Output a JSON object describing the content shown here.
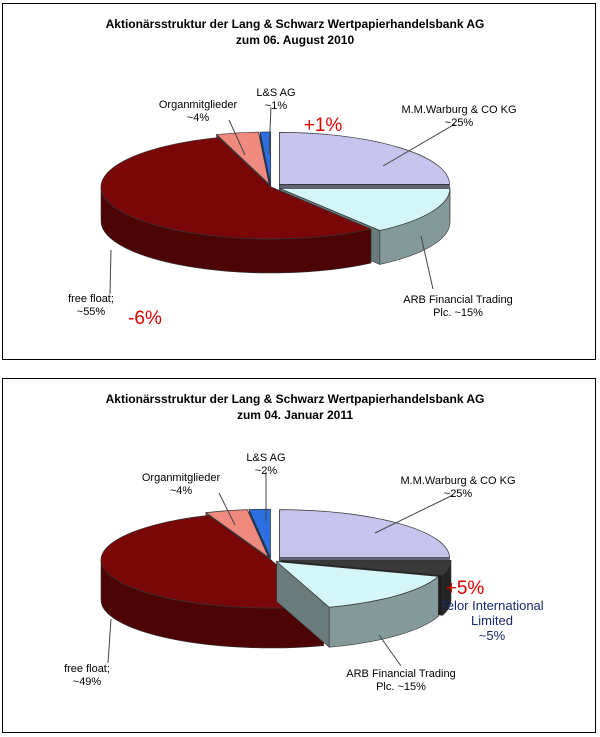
{
  "chart_data": [
    {
      "type": "pie",
      "title": "Aktionärsstruktur der Lang & Schwarz Wertpapierhandelsbank  AG",
      "subtitle": "zum 06. August  2010",
      "slices": [
        {
          "key": "warburg",
          "label_lines": [
            "M.M.Warburg & CO KG",
            "~25%"
          ],
          "value": 25,
          "color": "#c6c3ec"
        },
        {
          "key": "arb",
          "label_lines": [
            "ARB Financial Trading",
            "Plc. ~15%"
          ],
          "value": 15,
          "color": "#d4f6f8"
        },
        {
          "key": "freefloat",
          "label_lines": [
            "free float;",
            "~55%"
          ],
          "value": 55,
          "color": "#7a0707"
        },
        {
          "key": "organ",
          "label_lines": [
            "Organmitglieder",
            "~4%"
          ],
          "value": 4,
          "color": "#f08a7e"
        },
        {
          "key": "ls",
          "label_lines": [
            "L&S AG",
            "~1%"
          ],
          "value": 1,
          "color": "#2c6fe0"
        }
      ],
      "annotations": [
        {
          "key": "plus",
          "text": "+1%"
        },
        {
          "key": "minus",
          "text": "-6%"
        }
      ]
    },
    {
      "type": "pie",
      "title": "Aktionärsstruktur der Lang & Schwarz Wertpapierhandelsbank AG",
      "subtitle": "zum 04. Januar 2011",
      "slices": [
        {
          "key": "warburg",
          "label_lines": [
            "M.M.Warburg & CO KG",
            "~25%"
          ],
          "value": 25,
          "color": "#c6c3ec"
        },
        {
          "key": "telor",
          "label_lines": [
            "Telor International",
            "Limited",
            "~5%"
          ],
          "value": 5,
          "color": "#3a3a3a"
        },
        {
          "key": "arb",
          "label_lines": [
            "ARB Financial Trading",
            "Plc. ~15%"
          ],
          "value": 15,
          "color": "#d4f6f8"
        },
        {
          "key": "freefloat",
          "label_lines": [
            "free float;",
            "~49%"
          ],
          "value": 49,
          "color": "#7a0707"
        },
        {
          "key": "organ",
          "label_lines": [
            "Organmitglieder",
            "~4%"
          ],
          "value": 4,
          "color": "#f08a7e"
        },
        {
          "key": "ls",
          "label_lines": [
            "L&S AG",
            "~2%"
          ],
          "value": 2,
          "color": "#2c6fe0"
        }
      ],
      "annotations": [
        {
          "key": "plus",
          "text": "+5%"
        }
      ]
    }
  ]
}
